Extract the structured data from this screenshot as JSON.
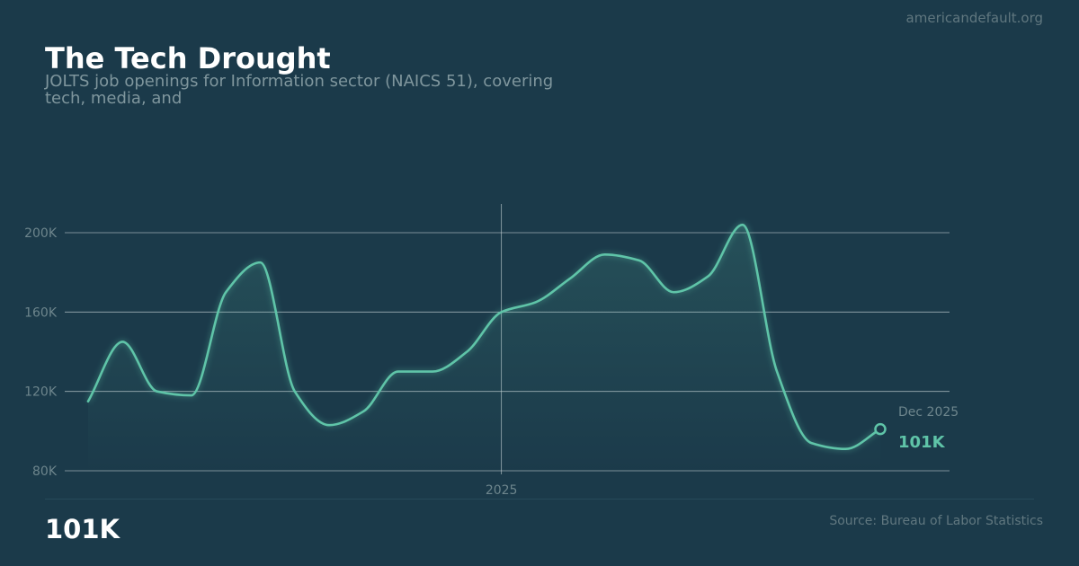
{
  "header": {
    "site": "americandefault.org",
    "title": "The Tech Drought",
    "subtitle": "JOLTS job openings for Information sector (NAICS 51), covering tech, media, and"
  },
  "footer": {
    "headline_value": "101K",
    "source": "Source: Bureau of Labor Statistics"
  },
  "colors": {
    "background": "#1b3a4a",
    "line": "#5fc4a8",
    "grid": "#c8d3d7"
  },
  "chart_data": {
    "type": "line",
    "title": "The Tech Drought",
    "xlabel": "",
    "ylabel": "",
    "x_start": "2024-01",
    "x": [
      "2024-01",
      "2024-02",
      "2024-03",
      "2024-04",
      "2024-05",
      "2024-06",
      "2024-07",
      "2024-08",
      "2024-09",
      "2024-10",
      "2024-11",
      "2024-12",
      "2025-01",
      "2025-02",
      "2025-03",
      "2025-04",
      "2025-05",
      "2025-06",
      "2025-07",
      "2025-08",
      "2025-09",
      "2025-10",
      "2025-11",
      "2025-12"
    ],
    "values": [
      115,
      145,
      120,
      118,
      170,
      185,
      120,
      103,
      110,
      130,
      130,
      140,
      160,
      165,
      177,
      189,
      186,
      170,
      178,
      204,
      130,
      94,
      91,
      101
    ],
    "units": "thousands",
    "ylim": [
      78,
      215
    ],
    "yticks": [
      80,
      120,
      160,
      200
    ],
    "ytick_labels": [
      "80K",
      "120K",
      "160K",
      "200K"
    ],
    "xtick_labels": [
      {
        "x": "2025-01",
        "label": "2025"
      }
    ],
    "grid": "horizontal",
    "annotation": {
      "date_label": "Dec 2025",
      "value_label": "101K"
    }
  }
}
